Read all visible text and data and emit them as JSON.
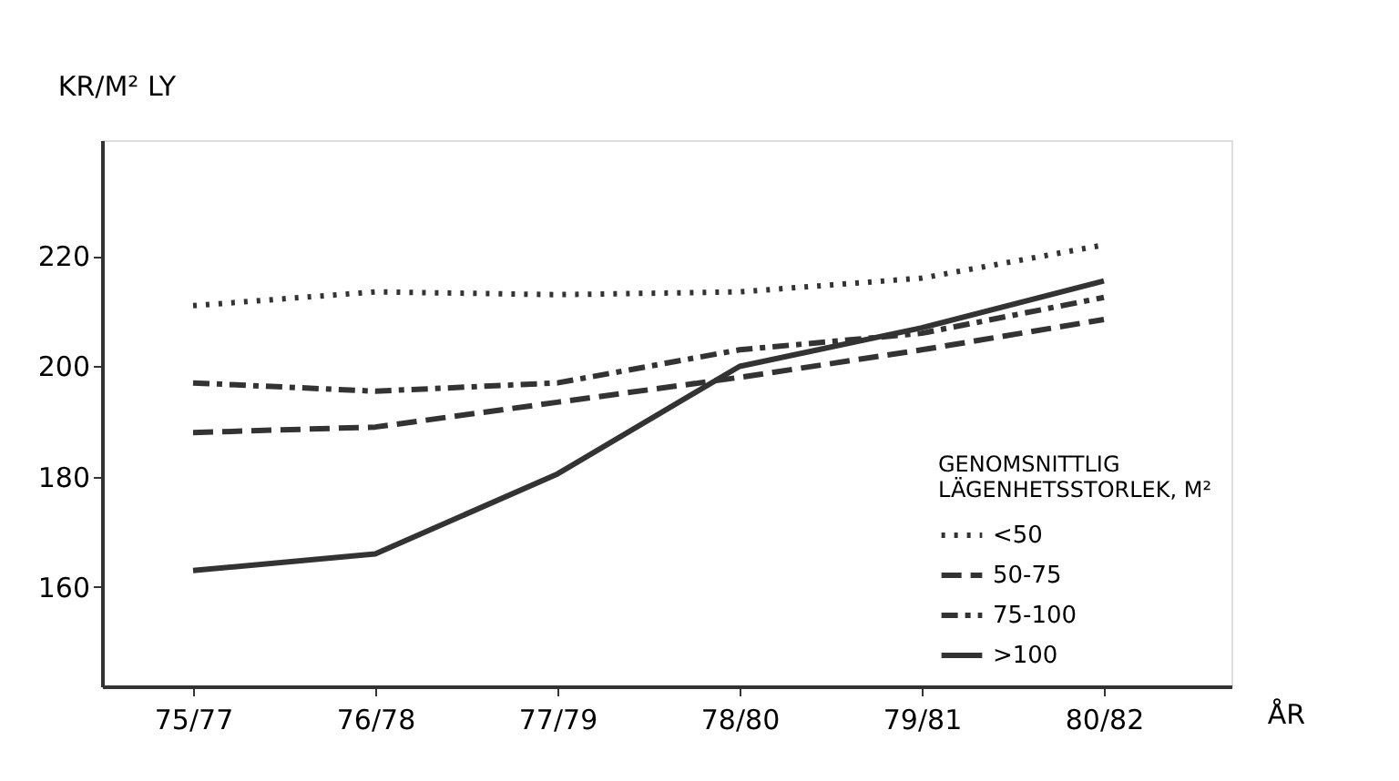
{
  "chart_data": {
    "type": "line",
    "xlabel": "ÅR",
    "ylabel": "KR/M² LY",
    "legend_title": "GENOMSNITTLIG\nLÄGENHETSSTORLEK, M²",
    "categories": [
      "75/77",
      "76/78",
      "77/79",
      "78/80",
      "79/81",
      "80/82"
    ],
    "series": [
      {
        "name": "<50",
        "color": "#333333",
        "line_style": "dotted",
        "values": [
          211,
          213.5,
          213,
          213.5,
          216,
          222
        ]
      },
      {
        "name": "50-75",
        "color": "#333333",
        "line_style": "dashed",
        "values": [
          188,
          189,
          193.5,
          198,
          203,
          208.5
        ]
      },
      {
        "name": "75-100",
        "color": "#333333",
        "line_style": "dashdot",
        "values": [
          197,
          195.5,
          197,
          203,
          206,
          212.5
        ]
      },
      {
        "name": ">100",
        "color": "#333333",
        "line_style": "solid",
        "values": [
          163,
          166,
          180.5,
          200,
          207,
          215.5
        ]
      }
    ],
    "ylim": [
      142,
      241
    ],
    "yticks": [
      160,
      180,
      200,
      220
    ],
    "grid": false,
    "legend": "bottom right",
    "marker": "none"
  }
}
